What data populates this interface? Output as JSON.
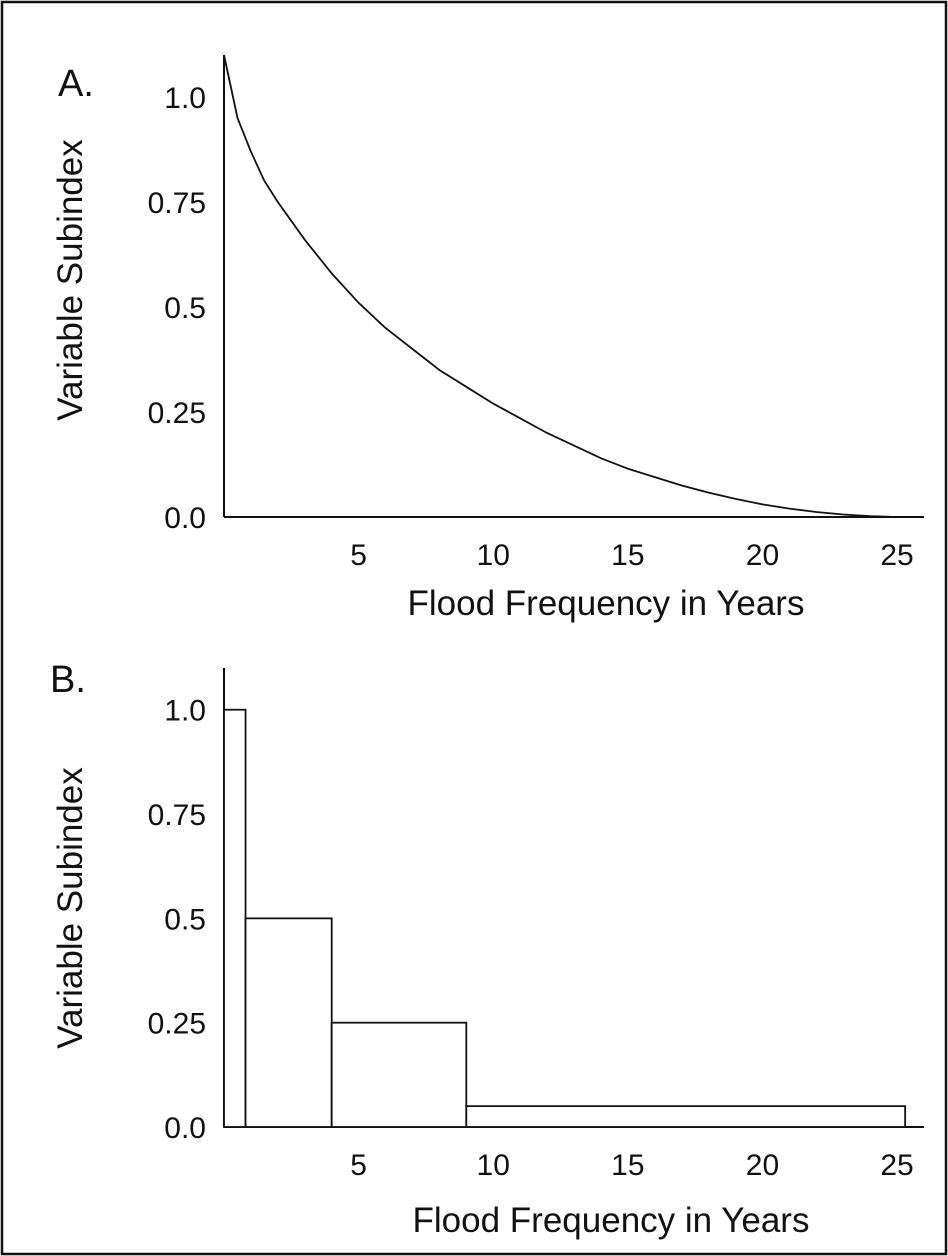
{
  "chart_data": [
    {
      "panel_label": "A.",
      "type": "line",
      "title": "",
      "xlabel": "Flood Frequency in Years",
      "ylabel": "Variable Subindex",
      "xlim": [
        0,
        26
      ],
      "ylim": [
        0,
        1.1
      ],
      "x_ticks": [
        5,
        10,
        15,
        20,
        25
      ],
      "y_ticks": [
        {
          "value": 0,
          "label": "0.0"
        },
        {
          "value": 0.25,
          "label": "0.25"
        },
        {
          "value": 0.5,
          "label": "0.5"
        },
        {
          "value": 0.75,
          "label": "0.75"
        },
        {
          "value": 1.0,
          "label": "1.0"
        }
      ],
      "grid": false,
      "series": [
        {
          "x": [
            0,
            0.5,
            1,
            1.5,
            2,
            3,
            4,
            5,
            6,
            7,
            8,
            9,
            10,
            11,
            12,
            13,
            14,
            15,
            16,
            17,
            18,
            19,
            20,
            21,
            22,
            23,
            24,
            25,
            26
          ],
          "values": [
            1.1,
            0.95,
            0.87,
            0.8,
            0.75,
            0.66,
            0.58,
            0.51,
            0.45,
            0.4,
            0.35,
            0.31,
            0.27,
            0.235,
            0.2,
            0.17,
            0.14,
            0.115,
            0.095,
            0.075,
            0.058,
            0.043,
            0.03,
            0.02,
            0.012,
            0.006,
            0.002,
            0.0,
            0.0
          ]
        }
      ]
    },
    {
      "panel_label": "B.",
      "type": "bar",
      "title": "",
      "xlabel": "Flood Frequency in Years",
      "ylabel": "Variable Subindex",
      "xlim": [
        0,
        26
      ],
      "ylim": [
        0,
        1.1
      ],
      "x_ticks": [
        5,
        10,
        15,
        20,
        25
      ],
      "y_ticks": [
        {
          "value": 0,
          "label": "0.0"
        },
        {
          "value": 0.25,
          "label": "0.25"
        },
        {
          "value": 0.5,
          "label": "0.5"
        },
        {
          "value": 0.75,
          "label": "0.75"
        },
        {
          "value": 1.0,
          "label": "1.0"
        }
      ],
      "grid": false,
      "bins": [
        {
          "x_start": 0,
          "x_end": 0.8,
          "value": 1.0
        },
        {
          "x_start": 0.8,
          "x_end": 4,
          "value": 0.5
        },
        {
          "x_start": 4,
          "x_end": 9,
          "value": 0.25
        },
        {
          "x_start": 9,
          "x_end": 25.3,
          "value": 0.05
        }
      ]
    }
  ]
}
